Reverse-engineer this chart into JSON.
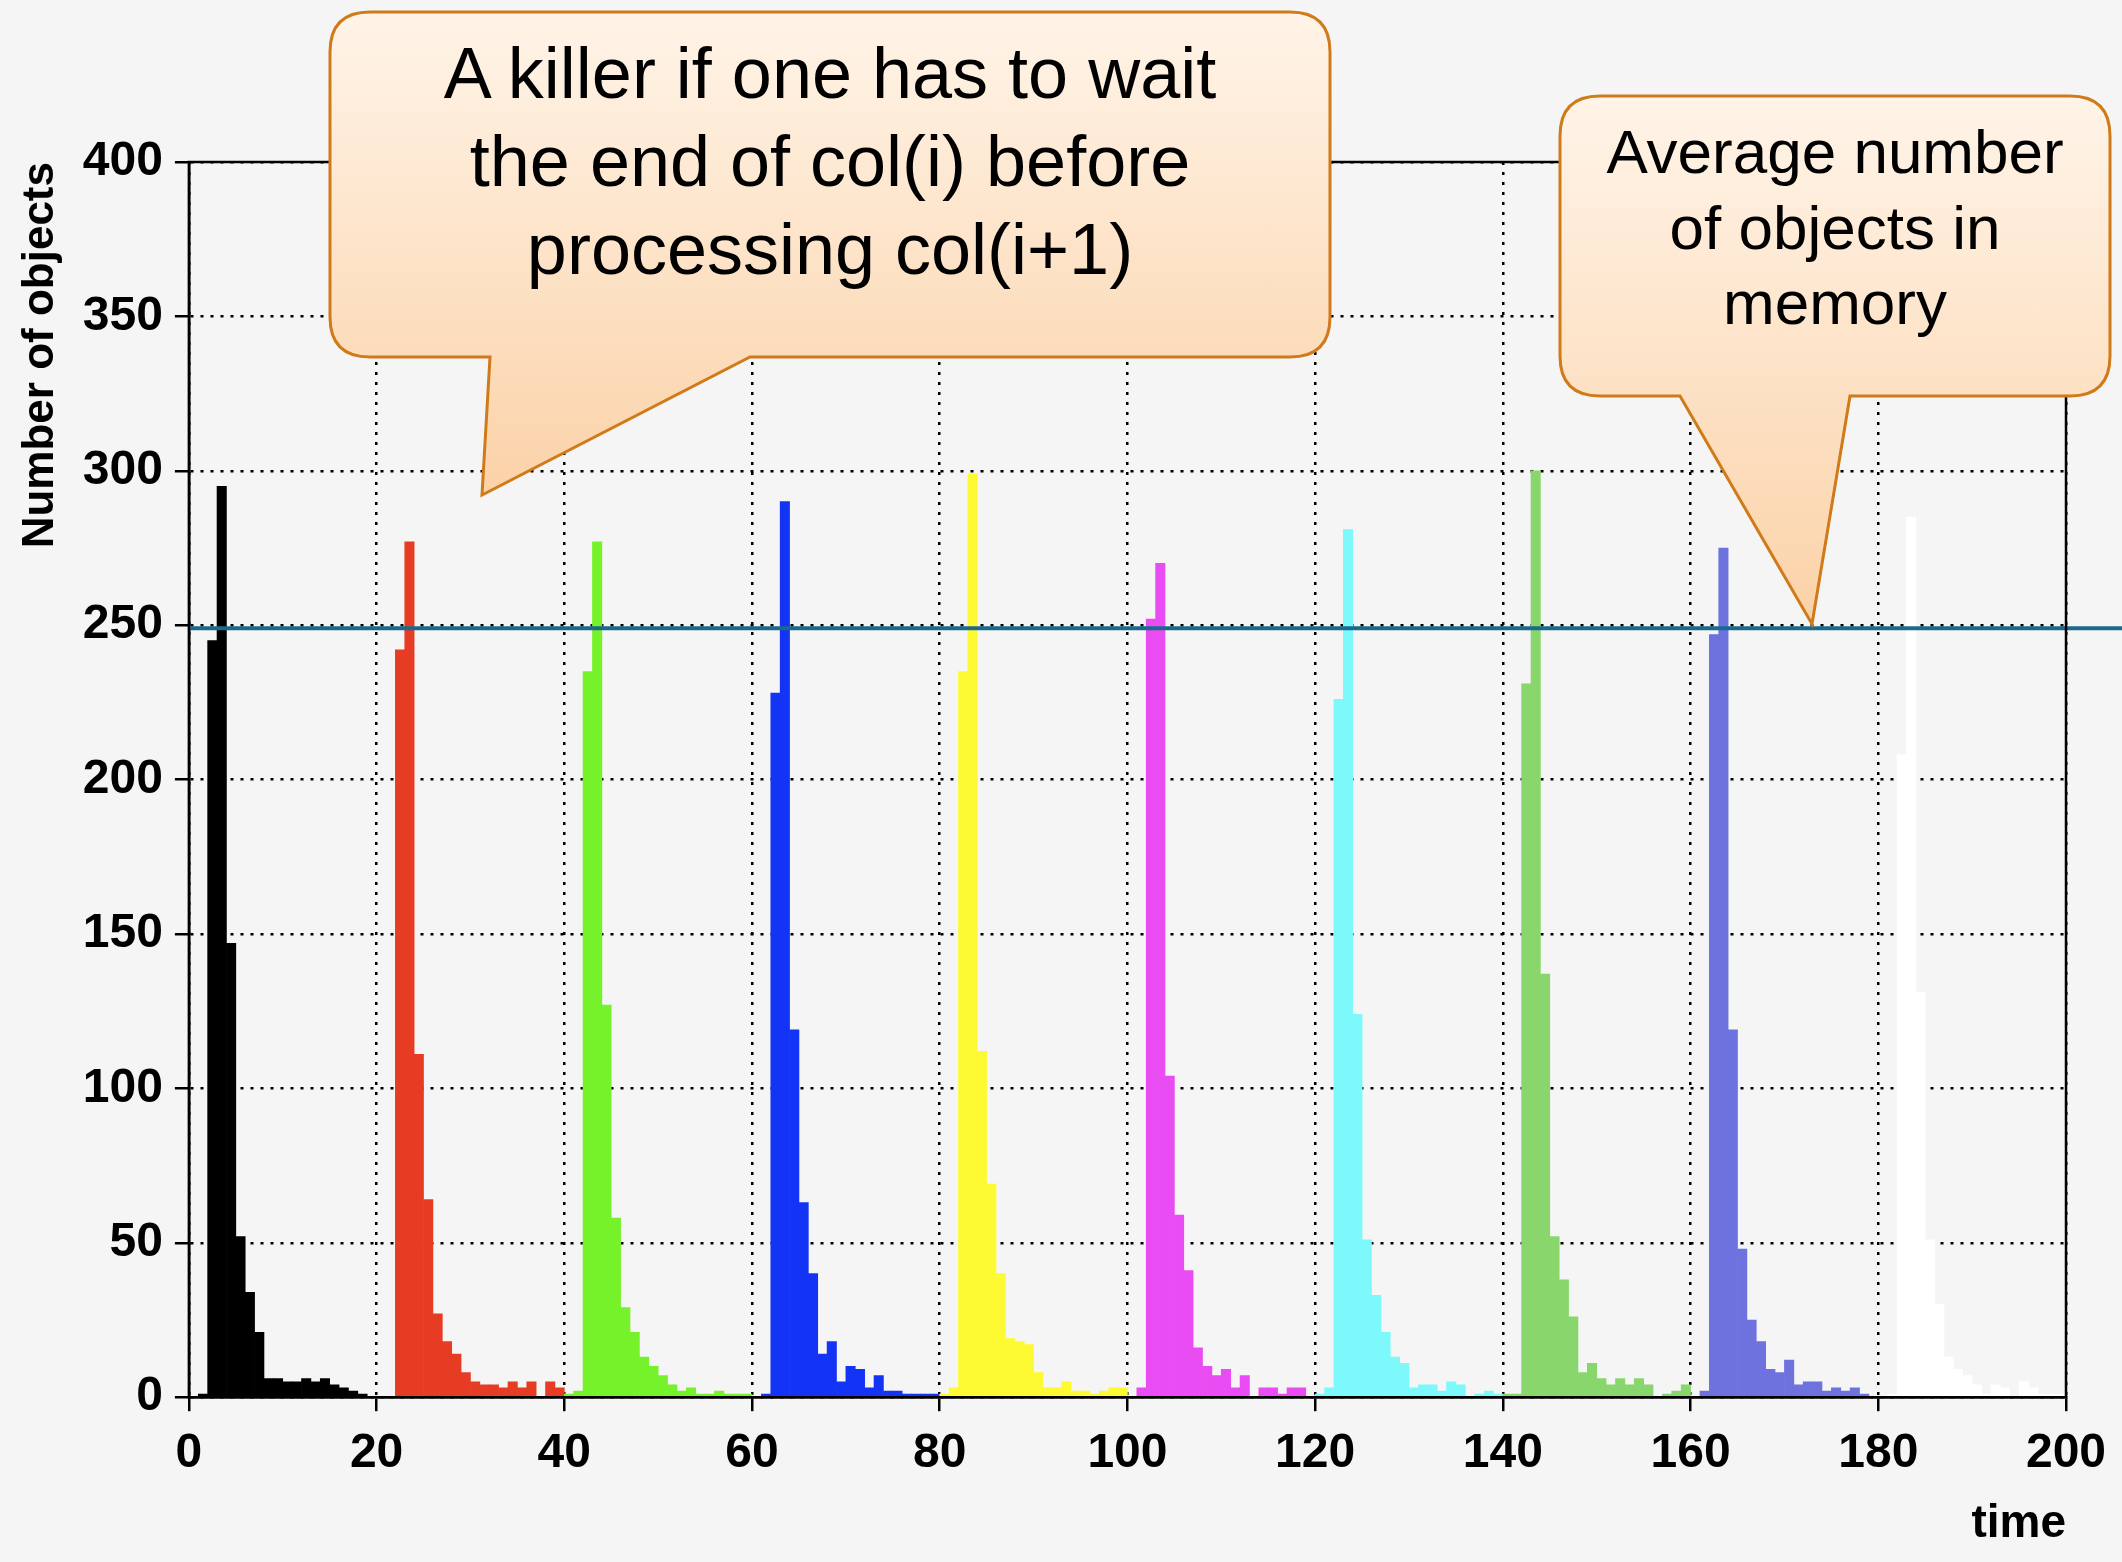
{
  "chart_data": {
    "type": "histogram",
    "xlabel": "time",
    "ylabel": "Number of objects",
    "xlim": [
      0,
      200
    ],
    "xticks": [
      0,
      20,
      40,
      60,
      80,
      100,
      120,
      140,
      160,
      180,
      200
    ],
    "ylim": [
      0,
      400
    ],
    "yticks": [
      0,
      50,
      100,
      150,
      200,
      250,
      300,
      350,
      400
    ],
    "grid": true,
    "legend": false,
    "bins": [
      0,
      1,
      2,
      3,
      4,
      5,
      6,
      7,
      8,
      9,
      10,
      11,
      12,
      13,
      14,
      15,
      16,
      17,
      18,
      19,
      20,
      21,
      22,
      23,
      24,
      25,
      26,
      27,
      28,
      29,
      30,
      31,
      32,
      33,
      34,
      35,
      36,
      37,
      38,
      39,
      40,
      41,
      42,
      43,
      44,
      45,
      46,
      47,
      48,
      49,
      50,
      51,
      52,
      53,
      54,
      55,
      56,
      57,
      58,
      59,
      60,
      61,
      62,
      63,
      64,
      65,
      66,
      67,
      68,
      69,
      70,
      71,
      72,
      73,
      74,
      75,
      76,
      77,
      78,
      79,
      80,
      81,
      82,
      83,
      84,
      85,
      86,
      87,
      88,
      89,
      90,
      91,
      92,
      93,
      94,
      95,
      96,
      97,
      98,
      99,
      100,
      101,
      102,
      103,
      104,
      105,
      106,
      107,
      108,
      109,
      110,
      111,
      112,
      113,
      114,
      115,
      116,
      117,
      118,
      119,
      120,
      121,
      122,
      123,
      124,
      125,
      126,
      127,
      128,
      129,
      130,
      131,
      132,
      133,
      134,
      135,
      136,
      137,
      138,
      139,
      140,
      141,
      142,
      143,
      144,
      145,
      146,
      147,
      148,
      149,
      150,
      151,
      152,
      153,
      154,
      155,
      156,
      157,
      158,
      159,
      160,
      161,
      162,
      163,
      164,
      165,
      166,
      167,
      168,
      169,
      170,
      171,
      172,
      173,
      174,
      175,
      176,
      177,
      178,
      179,
      180,
      181,
      182,
      183,
      184,
      185,
      186,
      187,
      188,
      189,
      190,
      191,
      192,
      193,
      194,
      195,
      196,
      197,
      198,
      199,
      200
    ],
    "values": [
      0,
      1,
      245,
      295,
      147,
      52,
      34,
      21,
      6,
      6,
      5,
      5,
      6,
      5,
      6,
      4,
      3,
      2,
      1,
      0,
      0,
      0,
      242,
      277,
      111,
      64,
      27,
      18,
      14,
      8,
      5,
      4,
      4,
      3,
      5,
      3,
      5,
      0,
      5,
      3,
      1,
      2,
      235,
      277,
      127,
      58,
      29,
      21,
      13,
      10,
      7,
      4,
      2,
      3,
      1,
      1,
      2,
      1,
      1,
      1,
      0,
      1,
      228,
      290,
      119,
      63,
      40,
      14,
      18,
      5,
      10,
      9,
      3,
      7,
      2,
      2,
      1,
      1,
      1,
      1,
      1,
      3,
      235,
      299,
      112,
      69,
      40,
      19,
      18,
      17,
      8,
      3,
      3,
      5,
      2,
      2,
      1,
      2,
      3,
      3,
      0,
      3,
      252,
      270,
      104,
      59,
      41,
      16,
      10,
      7,
      9,
      3,
      7,
      0,
      3,
      3,
      1,
      3,
      3,
      0,
      1,
      3,
      226,
      281,
      124,
      51,
      33,
      21,
      13,
      11,
      3,
      4,
      4,
      2,
      5,
      4,
      0,
      1,
      2,
      1,
      1,
      1,
      231,
      300,
      137,
      52,
      38,
      26,
      8,
      11,
      6,
      4,
      6,
      4,
      6,
      4,
      0,
      1,
      2,
      4,
      0,
      2,
      247,
      275,
      119,
      48,
      25,
      18,
      9,
      8,
      12,
      4,
      5,
      5,
      2,
      3,
      2,
      3,
      1,
      0,
      0,
      1,
      208,
      285,
      131,
      51,
      30,
      13,
      9,
      7,
      4,
      1,
      4,
      3,
      0,
      5,
      3,
      1,
      1,
      1
    ],
    "colors": [
      "#000000",
      "#000000",
      "#000000",
      "#000000",
      "#000000",
      "#000000",
      "#000000",
      "#000000",
      "#000000",
      "#000000",
      "#000000",
      "#000000",
      "#000000",
      "#000000",
      "#000000",
      "#000000",
      "#000000",
      "#000000",
      "#000000",
      "#000000",
      "#e63c24",
      "#e63c24",
      "#e63c24",
      "#e63c24",
      "#e63c24",
      "#e63c24",
      "#e63c24",
      "#e63c24",
      "#e63c24",
      "#e63c24",
      "#e63c24",
      "#e63c24",
      "#e63c24",
      "#e63c24",
      "#e63c24",
      "#e63c24",
      "#e63c24",
      "#e63c24",
      "#e63c24",
      "#e63c24",
      "#76f22a",
      "#76f22a",
      "#76f22a",
      "#76f22a",
      "#76f22a",
      "#76f22a",
      "#76f22a",
      "#76f22a",
      "#76f22a",
      "#76f22a",
      "#76f22a",
      "#76f22a",
      "#76f22a",
      "#76f22a",
      "#76f22a",
      "#76f22a",
      "#76f22a",
      "#76f22a",
      "#76f22a",
      "#76f22a",
      "#1434f5",
      "#1434f5",
      "#1434f5",
      "#1434f5",
      "#1434f5",
      "#1434f5",
      "#1434f5",
      "#1434f5",
      "#1434f5",
      "#1434f5",
      "#1434f5",
      "#1434f5",
      "#1434f5",
      "#1434f5",
      "#1434f5",
      "#1434f5",
      "#1434f5",
      "#1434f5",
      "#1434f5",
      "#1434f5",
      "#fdfa33",
      "#fdfa33",
      "#fdfa33",
      "#fdfa33",
      "#fdfa33",
      "#fdfa33",
      "#fdfa33",
      "#fdfa33",
      "#fdfa33",
      "#fdfa33",
      "#fdfa33",
      "#fdfa33",
      "#fdfa33",
      "#fdfa33",
      "#fdfa33",
      "#fdfa33",
      "#fdfa33",
      "#fdfa33",
      "#fdfa33",
      "#fdfa33",
      "#e94cf2",
      "#e94cf2",
      "#e94cf2",
      "#e94cf2",
      "#e94cf2",
      "#e94cf2",
      "#e94cf2",
      "#e94cf2",
      "#e94cf2",
      "#e94cf2",
      "#e94cf2",
      "#e94cf2",
      "#e94cf2",
      "#e94cf2",
      "#e94cf2",
      "#e94cf2",
      "#e94cf2",
      "#e94cf2",
      "#e94cf2",
      "#e94cf2",
      "#7df9fb",
      "#7df9fb",
      "#7df9fb",
      "#7df9fb",
      "#7df9fb",
      "#7df9fb",
      "#7df9fb",
      "#7df9fb",
      "#7df9fb",
      "#7df9fb",
      "#7df9fb",
      "#7df9fb",
      "#7df9fb",
      "#7df9fb",
      "#7df9fb",
      "#7df9fb",
      "#7df9fb",
      "#7df9fb",
      "#7df9fb",
      "#7df9fb",
      "#88d66c",
      "#88d66c",
      "#88d66c",
      "#88d66c",
      "#88d66c",
      "#88d66c",
      "#88d66c",
      "#88d66c",
      "#88d66c",
      "#88d66c",
      "#88d66c",
      "#88d66c",
      "#88d66c",
      "#88d66c",
      "#88d66c",
      "#88d66c",
      "#88d66c",
      "#88d66c",
      "#88d66c",
      "#88d66c",
      "#6e72de",
      "#6e72de",
      "#6e72de",
      "#6e72de",
      "#6e72de",
      "#6e72de",
      "#6e72de",
      "#6e72de",
      "#6e72de",
      "#6e72de",
      "#6e72de",
      "#6e72de",
      "#6e72de",
      "#6e72de",
      "#6e72de",
      "#6e72de",
      "#6e72de",
      "#6e72de",
      "#6e72de",
      "#6e72de",
      "#ffffff",
      "#ffffff",
      "#ffffff",
      "#ffffff",
      "#ffffff",
      "#ffffff",
      "#ffffff",
      "#ffffff",
      "#ffffff",
      "#ffffff",
      "#ffffff",
      "#ffffff",
      "#ffffff",
      "#ffffff",
      "#ffffff",
      "#ffffff",
      "#ffffff",
      "#ffffff",
      "#ffffff",
      "#ffffff"
    ],
    "ref_lines": [
      {
        "axis": "y",
        "value": 249,
        "color": "#1b6a8e"
      }
    ],
    "annotations": [
      "A killer if one has to wait the end of col(i) before processing col(i+1)",
      "Average number of objects in memory"
    ]
  }
}
